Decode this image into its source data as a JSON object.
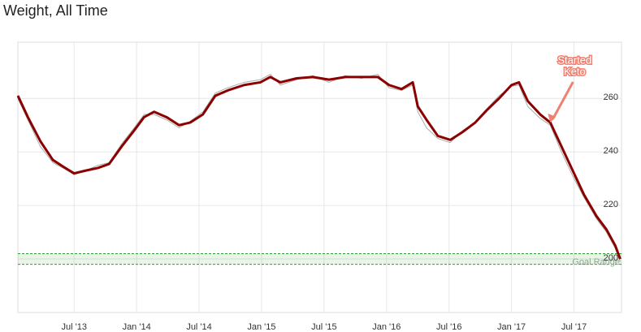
{
  "chart_data": {
    "type": "line",
    "title": "Weight, All Time",
    "x": [
      2013.05,
      2013.13,
      2013.23,
      2013.33,
      2013.43,
      2013.5,
      2013.59,
      2013.69,
      2013.78,
      2013.88,
      2013.98,
      2014.06,
      2014.14,
      2014.24,
      2014.34,
      2014.43,
      2014.53,
      2014.63,
      2014.73,
      2014.86,
      2014.99,
      2015.07,
      2015.15,
      2015.28,
      2015.41,
      2015.54,
      2015.67,
      2015.8,
      2015.93,
      2016.02,
      2016.12,
      2016.21,
      2016.25,
      2016.32,
      2016.41,
      2016.51,
      2016.61,
      2016.71,
      2016.8,
      2016.9,
      2017.0,
      2017.06,
      2017.13,
      2017.23,
      2017.31,
      2017.39,
      2017.49,
      2017.58,
      2017.68,
      2017.76,
      2017.83,
      2017.87
    ],
    "series": [
      {
        "color": "#aaaaaa",
        "values": [
          260,
          252,
          242,
          236,
          233.5,
          231.5,
          233,
          235,
          236,
          243,
          249,
          254,
          254,
          252,
          249,
          251.5,
          255,
          262,
          264,
          266,
          267,
          269,
          265,
          267,
          268.5,
          266,
          268.5,
          267.5,
          269,
          264,
          263,
          265,
          255,
          249,
          245,
          243.5,
          248,
          251,
          256,
          261,
          264.5,
          265,
          257,
          252.5,
          250,
          241,
          231,
          223,
          215,
          210,
          204,
          199
        ]
      },
      {
        "color": "#8b0000",
        "values": [
          261,
          253,
          244,
          237,
          234,
          232,
          233,
          234,
          235.5,
          242,
          248,
          253,
          255,
          253,
          250,
          251,
          254,
          261,
          263,
          265,
          266,
          268,
          266,
          267.5,
          268,
          267,
          268,
          268,
          268,
          265,
          263.5,
          266,
          257,
          252,
          246,
          244.5,
          247.5,
          251,
          255.5,
          260,
          265,
          266,
          259,
          254,
          251,
          243,
          233,
          224,
          216,
          211,
          205,
          200
        ]
      }
    ],
    "xlim": [
      2013.05,
      2017.88
    ],
    "ylim": [
      180,
      281
    ],
    "xticks": [
      {
        "value": 2013.5,
        "label": "Jul '13"
      },
      {
        "value": 2014.0,
        "label": "Jan '14"
      },
      {
        "value": 2014.5,
        "label": "Jul '14"
      },
      {
        "value": 2015.0,
        "label": "Jan '15"
      },
      {
        "value": 2015.5,
        "label": "Jul '15"
      },
      {
        "value": 2016.0,
        "label": "Jan '16"
      },
      {
        "value": 2016.5,
        "label": "Jul '16"
      },
      {
        "value": 2017.0,
        "label": "Jan '17"
      },
      {
        "value": 2017.5,
        "label": "Jul '17"
      }
    ],
    "yticks": [
      200,
      220,
      240,
      260
    ],
    "grid": true,
    "goal_range": {
      "label": "Goal Range",
      "from": 198,
      "to": 202,
      "color": "#2e9e2e"
    },
    "annotation": {
      "lines": [
        "Started",
        "Keto"
      ],
      "x": 2017.31,
      "y": 251,
      "color": "#f08070"
    }
  }
}
